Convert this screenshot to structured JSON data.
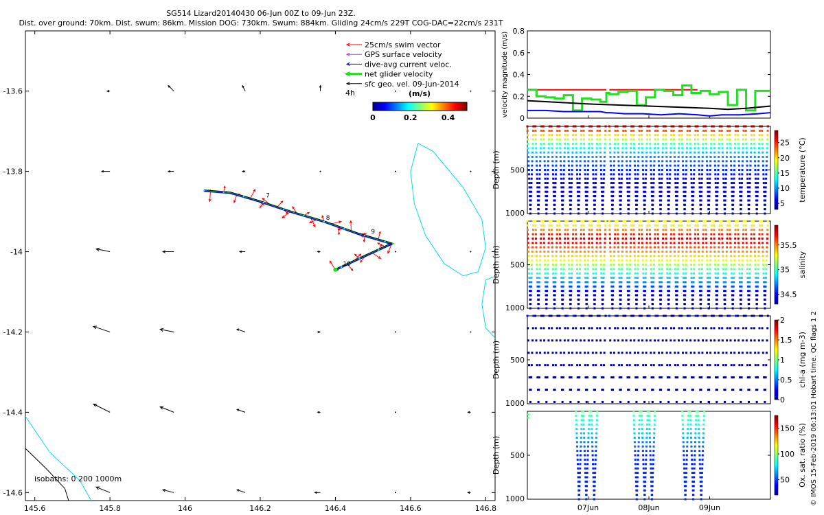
{
  "title": {
    "line1": "SG514 Lizard20140430 06-Jun 00Z to 09-Jun 23Z.",
    "line2": "Dist. over ground: 70km. Dist. swum: 86km. Mission DOG: 730km. Swum: 884km. Gliding 24cm/s 229T COG-DAC=22cm/s 231T"
  },
  "side_label": "© IMOS 15-Feb-2019 06:13:01 Hobart time. QC flags 1  2",
  "colors": {
    "swim": "#ff0000",
    "gps": "#cc33cc",
    "dac": "#0000ff",
    "net": "#22dd22",
    "geo": "#000000",
    "coast": "#00dddd"
  },
  "chart_data": [
    {
      "type": "scatter",
      "name": "map",
      "xlim": [
        145.575,
        146.825
      ],
      "ylim": [
        -14.62,
        -13.45
      ],
      "xticks": [
        145.6,
        145.8,
        146,
        146.2,
        146.4,
        146.6,
        146.8
      ],
      "xticklabels": [
        "145.6",
        "145.8",
        "146",
        "146.2",
        "146.4",
        "146.6",
        "146.8"
      ],
      "yticks": [
        -13.6,
        -13.8,
        -14,
        -14.2,
        -14.4,
        -14.6
      ],
      "yticklabels": [
        "-13.6",
        "-13.8",
        "-14",
        "-14.2",
        "-14.4",
        "-14.6"
      ],
      "legend": {
        "entries": [
          "25cm/s swim vector",
          "GPS surface velocity",
          "dive-avg current veloc.",
          "net glider velocity",
          "sfc geo. vel. 09-Jun-2014"
        ],
        "location": "top-right"
      },
      "colorbar": {
        "label": "(m/s)",
        "ticks": [
          "0",
          "0.2",
          "0.4"
        ],
        "range": [
          0,
          0.5
        ],
        "note": "4h"
      },
      "isobaths_label": "isobaths: 0   200  1000m",
      "track": [
        [
          146.05,
          -13.848
        ],
        [
          146.12,
          -13.853
        ],
        [
          146.2,
          -13.875
        ],
        [
          146.28,
          -13.9
        ],
        [
          146.37,
          -13.925
        ],
        [
          146.46,
          -13.955
        ],
        [
          146.55,
          -13.98
        ],
        [
          146.48,
          -14.01
        ],
        [
          146.4,
          -14.045
        ]
      ],
      "track_labels": [
        {
          "text": "7",
          "lon": 146.215,
          "lat": -13.865
        },
        {
          "text": "8",
          "lon": 146.375,
          "lat": -13.92
        },
        {
          "text": "9",
          "lon": 146.495,
          "lat": -13.955
        },
        {
          "text": "10",
          "lon": 146.42,
          "lat": -14.035
        }
      ],
      "geo_vectors": [
        {
          "lon": 145.8,
          "lat": -13.6,
          "u": -0.01,
          "v": 0.0
        },
        {
          "lon": 145.97,
          "lat": -13.6,
          "u": -0.02,
          "v": 0.02
        },
        {
          "lon": 146.16,
          "lat": -13.6,
          "u": -0.01,
          "v": 0.02
        },
        {
          "lon": 146.36,
          "lat": -13.6,
          "u": 0.0,
          "v": 0.02
        },
        {
          "lon": 146.56,
          "lat": -13.6,
          "u": 0.0,
          "v": 0.0
        },
        {
          "lon": 146.76,
          "lat": -13.6,
          "u": 0.0,
          "v": 0.0
        },
        {
          "lon": 145.8,
          "lat": -13.8,
          "u": -0.03,
          "v": 0.0
        },
        {
          "lon": 145.97,
          "lat": -13.8,
          "u": -0.02,
          "v": 0.0
        },
        {
          "lon": 146.16,
          "lat": -13.8,
          "u": -0.01,
          "v": 0.0
        },
        {
          "lon": 146.36,
          "lat": -13.8,
          "u": 0.0,
          "v": 0.0
        },
        {
          "lon": 146.56,
          "lat": -13.8,
          "u": 0.0,
          "v": 0.0
        },
        {
          "lon": 146.76,
          "lat": -13.8,
          "u": 0.0,
          "v": 0.0
        },
        {
          "lon": 145.8,
          "lat": -14.0,
          "u": -0.05,
          "v": 0.01
        },
        {
          "lon": 145.97,
          "lat": -14.0,
          "u": -0.04,
          "v": 0.0
        },
        {
          "lon": 146.16,
          "lat": -14.0,
          "u": -0.02,
          "v": 0.0
        },
        {
          "lon": 146.36,
          "lat": -14.0,
          "u": -0.01,
          "v": 0.0
        },
        {
          "lon": 146.56,
          "lat": -14.0,
          "u": 0.0,
          "v": 0.0
        },
        {
          "lon": 146.76,
          "lat": -14.0,
          "u": 0.0,
          "v": 0.0
        },
        {
          "lon": 145.8,
          "lat": -14.2,
          "u": -0.06,
          "v": 0.02
        },
        {
          "lon": 145.97,
          "lat": -14.2,
          "u": -0.05,
          "v": 0.01
        },
        {
          "lon": 146.16,
          "lat": -14.2,
          "u": -0.03,
          "v": 0.01
        },
        {
          "lon": 146.36,
          "lat": -14.2,
          "u": -0.01,
          "v": 0.0
        },
        {
          "lon": 146.56,
          "lat": -14.2,
          "u": 0.0,
          "v": 0.0
        },
        {
          "lon": 146.76,
          "lat": -14.2,
          "u": 0.0,
          "v": 0.0
        },
        {
          "lon": 145.8,
          "lat": -14.4,
          "u": -0.06,
          "v": 0.03
        },
        {
          "lon": 145.97,
          "lat": -14.4,
          "u": -0.05,
          "v": 0.02
        },
        {
          "lon": 146.16,
          "lat": -14.4,
          "u": -0.03,
          "v": 0.01
        },
        {
          "lon": 146.36,
          "lat": -14.4,
          "u": -0.01,
          "v": 0.0
        },
        {
          "lon": 146.56,
          "lat": -14.4,
          "u": 0.0,
          "v": 0.0
        },
        {
          "lon": 146.76,
          "lat": -14.4,
          "u": -0.01,
          "v": 0.0
        },
        {
          "lon": 145.8,
          "lat": -14.6,
          "u": -0.05,
          "v": 0.02
        },
        {
          "lon": 145.97,
          "lat": -14.6,
          "u": -0.04,
          "v": 0.01
        },
        {
          "lon": 146.16,
          "lat": -14.6,
          "u": -0.03,
          "v": 0.01
        },
        {
          "lon": 146.36,
          "lat": -14.6,
          "u": -0.02,
          "v": 0.0
        },
        {
          "lon": 146.56,
          "lat": -14.6,
          "u": 0.0,
          "v": 0.0
        },
        {
          "lon": 146.76,
          "lat": -14.6,
          "u": -0.01,
          "v": 0.0
        }
      ],
      "isobath_0m": [
        [
          [
            146.62,
            -13.73
          ],
          [
            146.66,
            -13.75
          ],
          [
            146.74,
            -13.84
          ],
          [
            146.79,
            -13.92
          ],
          [
            146.8,
            -13.99
          ],
          [
            146.78,
            -14.05
          ],
          [
            146.74,
            -14.06
          ],
          [
            146.69,
            -14.03
          ],
          [
            146.64,
            -13.96
          ],
          [
            146.61,
            -13.88
          ],
          [
            146.6,
            -13.8
          ],
          [
            146.62,
            -13.73
          ]
        ],
        [
          [
            146.83,
            -14.06
          ],
          [
            146.8,
            -14.07
          ],
          [
            146.79,
            -14.13
          ],
          [
            146.8,
            -14.19
          ],
          [
            146.83,
            -14.22
          ]
        ],
        [
          [
            145.575,
            -14.41
          ],
          [
            145.64,
            -14.5
          ],
          [
            145.72,
            -14.57
          ],
          [
            145.75,
            -14.62
          ]
        ]
      ],
      "isobath_200m": [
        [
          [
            145.575,
            -14.49
          ],
          [
            145.63,
            -14.54
          ],
          [
            145.68,
            -14.59
          ],
          [
            145.69,
            -14.62
          ]
        ]
      ]
    },
    {
      "type": "line",
      "name": "velocity",
      "ylabel": "velocity magnitude (m/s)",
      "ylim": [
        0,
        0.8
      ],
      "yticks": [
        0,
        0.2,
        0.4,
        0.6,
        0.8
      ],
      "yticklabels": [
        "0",
        "0.2",
        "0.4",
        "0.6",
        "0.8"
      ],
      "xlim": [
        6.0,
        10.0
      ],
      "xticks": [
        7.0,
        8.0,
        9.0
      ],
      "xticklabels": [
        "07Jun",
        "08Jun",
        "09Jun"
      ],
      "series": [
        {
          "name": "swim",
          "color": "#ff0000",
          "width": 2,
          "dashed": true,
          "x": [
            6.0,
            7.3,
            7.35,
            8.8
          ],
          "y": [
            0.26,
            0.26,
            0.26,
            0.26
          ],
          "segments": [
            [
              6.0,
              7.3
            ],
            [
              7.35,
              8.8
            ]
          ]
        },
        {
          "name": "net glider",
          "color": "#22dd22",
          "width": 3,
          "step": true,
          "x": [
            6.0,
            6.15,
            6.3,
            6.45,
            6.6,
            6.75,
            6.9,
            7.05,
            7.2,
            7.3,
            7.35,
            7.5,
            7.65,
            7.8,
            7.95,
            8.1,
            8.25,
            8.4,
            8.55,
            8.7,
            8.85,
            9.0,
            9.15,
            9.3,
            9.45,
            9.6,
            9.75,
            9.9,
            10.0
          ],
          "y": [
            0.26,
            0.2,
            0.19,
            0.18,
            0.21,
            0.07,
            0.18,
            0.17,
            0.15,
            0.23,
            0.22,
            0.24,
            0.25,
            0.12,
            0.19,
            0.26,
            0.25,
            0.21,
            0.3,
            0.23,
            0.25,
            0.22,
            0.24,
            0.12,
            0.26,
            0.07,
            0.25,
            0.25,
            0.25
          ]
        },
        {
          "name": "dive-avg current",
          "color": "#0000ff",
          "width": 2,
          "x": [
            6.0,
            6.3,
            6.6,
            6.9,
            7.2,
            7.3,
            7.35,
            7.6,
            7.9,
            8.2,
            8.5,
            8.8,
            9.0,
            9.2,
            9.5,
            9.8,
            10.0
          ],
          "y": [
            0.07,
            0.07,
            0.06,
            0.06,
            0.06,
            0.05,
            0.05,
            0.04,
            0.04,
            0.03,
            0.04,
            0.03,
            0.02,
            0.03,
            0.03,
            0.04,
            0.05
          ]
        },
        {
          "name": "sfc geo",
          "color": "#000000",
          "width": 2,
          "x": [
            6.0,
            6.5,
            7.0,
            7.5,
            8.0,
            8.5,
            9.0,
            9.3,
            9.6,
            10.0
          ],
          "y": [
            0.16,
            0.145,
            0.13,
            0.12,
            0.11,
            0.1,
            0.09,
            0.08,
            0.09,
            0.11
          ]
        }
      ]
    },
    {
      "type": "scatter",
      "name": "temperature",
      "ylabel": "Depth (m)",
      "cbar_label": "temperature (°C)",
      "cbar_range": [
        3,
        29
      ],
      "cbar_ticks": [
        5,
        10,
        15,
        20,
        25
      ],
      "cbar_ticklabels": [
        "5",
        "10",
        "15",
        "20",
        "25"
      ],
      "ylim": [
        0,
        1000
      ],
      "yticks": [
        500,
        1000
      ],
      "yticklabels": [
        "500",
        "1000"
      ],
      "surface_value": 28,
      "deep_value": 4
    },
    {
      "type": "scatter",
      "name": "salinity",
      "ylabel": "Depth (m)",
      "cbar_label": "salinity",
      "cbar_range": [
        34.3,
        35.9
      ],
      "cbar_ticks": [
        34.5,
        35,
        35.5
      ],
      "cbar_ticklabels": [
        "34.5",
        "35",
        "35.5"
      ],
      "ylim": [
        0,
        1000
      ],
      "yticks": [
        500,
        1000
      ],
      "yticklabels": [
        "500",
        "1000"
      ],
      "surface_value": 35.3,
      "peak_value": 35.8,
      "deep_value": 34.4
    },
    {
      "type": "scatter",
      "name": "chlorophyll",
      "ylabel": "Depth (m)",
      "cbar_label": "chl-a (mg m-3)",
      "cbar_range": [
        0,
        2
      ],
      "cbar_ticks": [
        0,
        0.5,
        1,
        1.5,
        2
      ],
      "cbar_ticklabels": [
        "0",
        "0.5",
        "1",
        "1.5",
        "2"
      ],
      "ylim": [
        0,
        1000
      ],
      "yticks": [
        500,
        1000
      ],
      "yticklabels": [
        "500",
        "1000"
      ]
    },
    {
      "type": "scatter",
      "name": "oxygen",
      "ylabel": "Depth (m)",
      "cbar_label": "Ox. sat. ratio (%)",
      "cbar_range": [
        20,
        175
      ],
      "cbar_ticks": [
        50,
        100,
        150
      ],
      "cbar_ticklabels": [
        "50",
        "100",
        "150"
      ],
      "ylim": [
        0,
        1000
      ],
      "yticks": [
        500,
        1000
      ],
      "yticklabels": [
        "500",
        "1000"
      ]
    }
  ]
}
